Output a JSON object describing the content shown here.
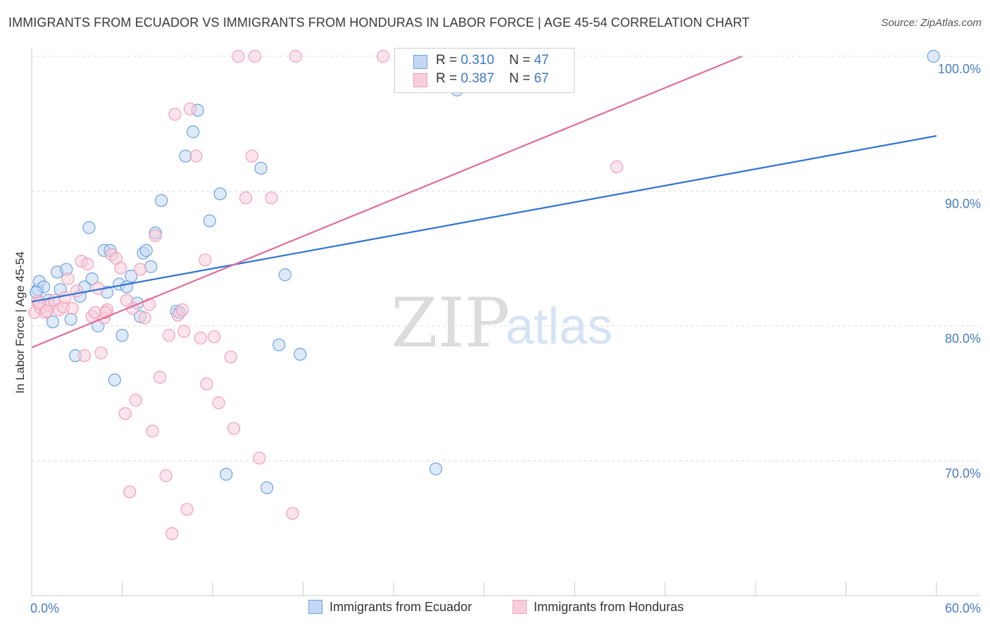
{
  "title": "IMMIGRANTS FROM ECUADOR VS IMMIGRANTS FROM HONDURAS IN LABOR FORCE | AGE 45-54 CORRELATION CHART",
  "source": "Source: ZipAtlas.com",
  "watermark": {
    "zip": "ZIP",
    "atlas": "atlas"
  },
  "legend": {
    "rows": [
      {
        "r_label": "R =",
        "r_value": "0.310",
        "n_label": "N =",
        "n_value": "47"
      },
      {
        "r_label": "R =",
        "r_value": "0.387",
        "n_label": "N =",
        "n_value": "67"
      }
    ]
  },
  "chart_data": {
    "type": "scatter",
    "title": "IMMIGRANTS FROM ECUADOR VS IMMIGRANTS FROM HONDURAS IN LABOR FORCE | AGE 45-54 CORRELATION CHART",
    "xlabel": "",
    "ylabel": "In Labor Force | Age 45-54",
    "xlim": [
      0,
      60
    ],
    "ylim": [
      60,
      101
    ],
    "x_tick_labels": [
      "0.0%",
      "60.0%"
    ],
    "y_ticks": [
      70,
      80,
      90,
      100
    ],
    "y_tick_labels": [
      "70.0%",
      "80.0%",
      "90.0%",
      "100.0%"
    ],
    "grid": true,
    "legend_placement": "bottom",
    "series": [
      {
        "name": "Immigrants from Ecuador",
        "color": "#6fa1e3",
        "fill": "#c3d8f4",
        "trend_color": "#2f73d1",
        "r": 0.31,
        "n": 47,
        "trendline": [
          [
            0,
            81.8
          ],
          [
            60,
            94.1
          ]
        ],
        "points": [
          [
            0.4,
            82.7
          ],
          [
            0.5,
            83.3
          ],
          [
            0.8,
            82.9
          ],
          [
            1.1,
            81.9
          ],
          [
            1.4,
            80.3
          ],
          [
            1.7,
            84.0
          ],
          [
            1.9,
            82.7
          ],
          [
            2.3,
            84.2
          ],
          [
            2.6,
            80.5
          ],
          [
            2.9,
            77.8
          ],
          [
            3.2,
            82.2
          ],
          [
            3.5,
            82.9
          ],
          [
            3.8,
            87.3
          ],
          [
            4.0,
            83.5
          ],
          [
            4.4,
            80.0
          ],
          [
            4.8,
            85.6
          ],
          [
            5.0,
            82.5
          ],
          [
            5.2,
            85.6
          ],
          [
            5.5,
            76.0
          ],
          [
            5.8,
            83.1
          ],
          [
            6.0,
            79.3
          ],
          [
            6.3,
            82.9
          ],
          [
            6.6,
            83.7
          ],
          [
            7.0,
            81.7
          ],
          [
            7.2,
            80.7
          ],
          [
            7.4,
            85.4
          ],
          [
            7.6,
            85.6
          ],
          [
            7.9,
            84.4
          ],
          [
            8.2,
            86.9
          ],
          [
            8.6,
            89.3
          ],
          [
            9.6,
            81.1
          ],
          [
            9.8,
            81.0
          ],
          [
            10.2,
            92.6
          ],
          [
            10.7,
            94.4
          ],
          [
            11.0,
            96.0
          ],
          [
            11.8,
            87.8
          ],
          [
            12.5,
            89.8
          ],
          [
            12.9,
            69.0
          ],
          [
            15.2,
            91.7
          ],
          [
            15.6,
            68.0
          ],
          [
            16.4,
            78.6
          ],
          [
            16.8,
            83.8
          ],
          [
            17.8,
            77.9
          ],
          [
            26.8,
            69.4
          ],
          [
            28.2,
            97.5
          ],
          [
            59.8,
            100.0
          ],
          [
            0.3,
            82.5
          ]
        ]
      },
      {
        "name": "Immigrants from Honduras",
        "color": "#f0a0ba",
        "fill": "#f8cedb",
        "trend_color": "#e06d98",
        "r": 0.387,
        "n": 67,
        "trendline": [
          [
            0,
            78.4
          ],
          [
            47.1,
            100.0
          ]
        ],
        "points": [
          [
            0.2,
            81.0
          ],
          [
            0.4,
            81.8
          ],
          [
            0.6,
            81.3
          ],
          [
            0.9,
            81.0
          ],
          [
            1.2,
            81.5
          ],
          [
            1.5,
            81.9
          ],
          [
            1.8,
            81.2
          ],
          [
            2.1,
            81.4
          ],
          [
            2.4,
            83.5
          ],
          [
            2.7,
            81.3
          ],
          [
            3.0,
            82.6
          ],
          [
            3.3,
            84.8
          ],
          [
            3.5,
            77.8
          ],
          [
            3.7,
            84.6
          ],
          [
            4.0,
            80.7
          ],
          [
            4.2,
            81.0
          ],
          [
            4.4,
            82.8
          ],
          [
            4.6,
            78.0
          ],
          [
            4.8,
            80.6
          ],
          [
            5.0,
            81.2
          ],
          [
            5.3,
            85.3
          ],
          [
            5.6,
            85.0
          ],
          [
            5.9,
            84.3
          ],
          [
            6.2,
            73.5
          ],
          [
            6.5,
            67.7
          ],
          [
            6.7,
            81.3
          ],
          [
            6.9,
            74.5
          ],
          [
            7.2,
            84.2
          ],
          [
            7.5,
            80.6
          ],
          [
            7.8,
            81.6
          ],
          [
            8.0,
            72.2
          ],
          [
            8.2,
            86.7
          ],
          [
            8.5,
            76.2
          ],
          [
            8.9,
            68.9
          ],
          [
            9.1,
            79.3
          ],
          [
            9.3,
            64.6
          ],
          [
            9.5,
            95.7
          ],
          [
            9.7,
            80.8
          ],
          [
            10.1,
            79.6
          ],
          [
            10.3,
            66.4
          ],
          [
            10.5,
            96.1
          ],
          [
            10.9,
            92.6
          ],
          [
            11.2,
            79.1
          ],
          [
            11.5,
            84.9
          ],
          [
            11.6,
            75.7
          ],
          [
            12.1,
            79.2
          ],
          [
            12.4,
            74.3
          ],
          [
            13.2,
            77.7
          ],
          [
            13.4,
            72.4
          ],
          [
            13.7,
            100.0
          ],
          [
            14.2,
            89.5
          ],
          [
            14.6,
            92.6
          ],
          [
            14.8,
            100.0
          ],
          [
            15.1,
            70.2
          ],
          [
            15.9,
            89.5
          ],
          [
            17.3,
            66.1
          ],
          [
            17.5,
            100.0
          ],
          [
            23.3,
            100.0
          ],
          [
            24.9,
            99.2
          ],
          [
            25.6,
            100.0
          ],
          [
            38.8,
            91.8
          ],
          [
            0.5,
            81.7
          ],
          [
            1.0,
            81.1
          ],
          [
            6.3,
            81.9
          ],
          [
            4.9,
            81.0
          ],
          [
            2.2,
            82.1
          ],
          [
            10.0,
            81.2
          ]
        ]
      }
    ]
  }
}
